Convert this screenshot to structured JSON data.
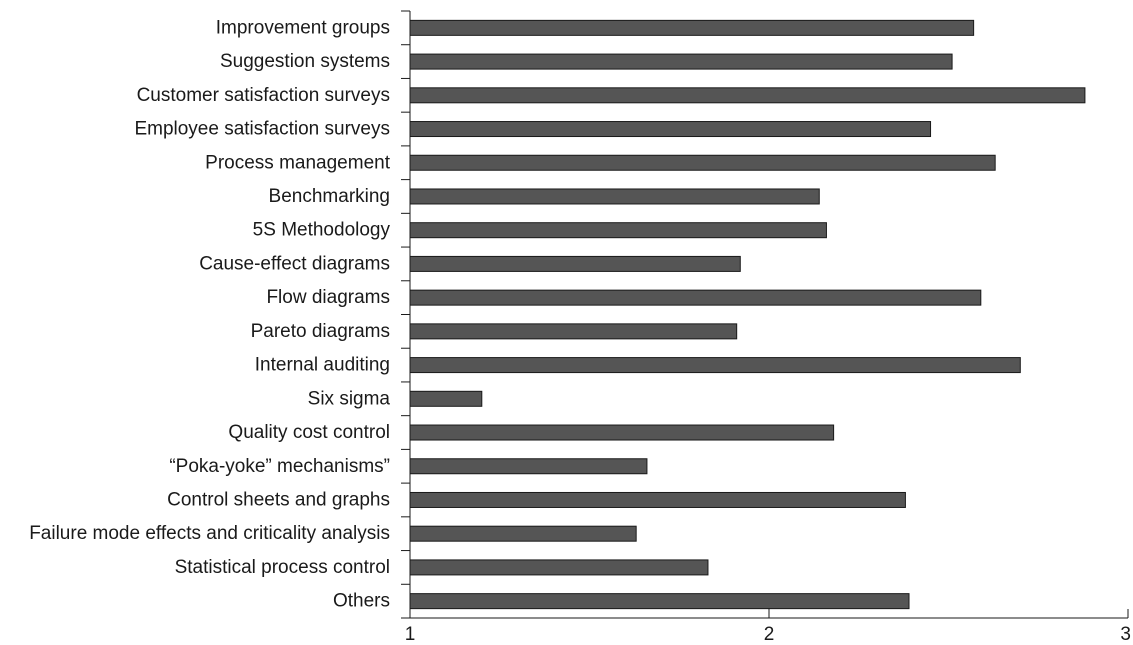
{
  "chart_data": {
    "type": "bar",
    "orientation": "horizontal",
    "categories": [
      "Improvement groups",
      "Suggestion systems",
      "Customer satisfaction surveys",
      "Employee satisfaction surveys",
      "Process management",
      "Benchmarking",
      "5S Methodology",
      "Cause-effect diagrams",
      "Flow diagrams",
      "Pareto diagrams",
      "Internal auditing",
      "Six sigma",
      "Quality cost control",
      "“Poka-yoke”  mechanisms”",
      "Control sheets and graphs",
      "Failure mode effects and criticality analysis",
      "Statistical process control",
      "Others"
    ],
    "values": [
      2.57,
      2.51,
      2.88,
      2.45,
      2.63,
      2.14,
      2.16,
      1.92,
      2.59,
      1.91,
      2.7,
      1.2,
      2.18,
      1.66,
      2.38,
      1.63,
      1.83,
      2.39
    ],
    "xlim": [
      1,
      3
    ],
    "xticks": [
      "1",
      "2",
      "3"
    ],
    "grid": false,
    "colors": {
      "bar": "#555555",
      "outline": "#1a1a1a"
    }
  }
}
